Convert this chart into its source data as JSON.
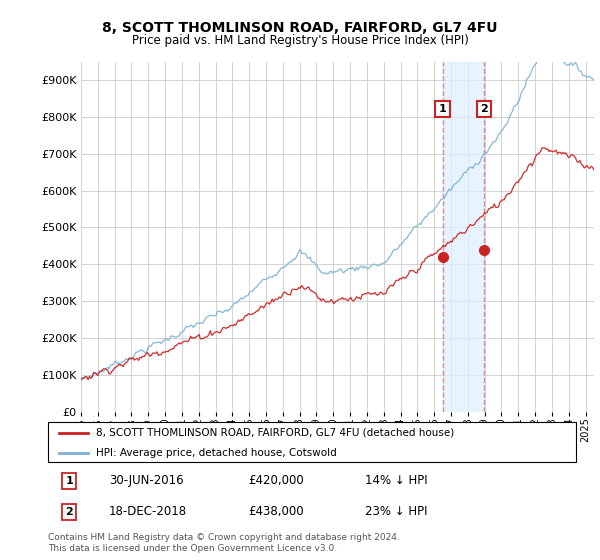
{
  "title": "8, SCOTT THOMLINSON ROAD, FAIRFORD, GL7 4FU",
  "subtitle": "Price paid vs. HM Land Registry's House Price Index (HPI)",
  "ytick_values": [
    0,
    100000,
    200000,
    300000,
    400000,
    500000,
    600000,
    700000,
    800000,
    900000
  ],
  "ylim": [
    0,
    950000
  ],
  "xlim_start": 1995.0,
  "xlim_end": 2025.5,
  "hpi_color": "#7ab0d4",
  "hpi_fill_color": "#ddeeff",
  "price_color": "#cc2222",
  "vline_color": "#e08080",
  "sale1_date": 2016.5,
  "sale1_price": 420000,
  "sale1_label": "1",
  "sale2_date": 2018.96,
  "sale2_price": 438000,
  "sale2_label": "2",
  "legend1_text": "8, SCOTT THOMLINSON ROAD, FAIRFORD, GL7 4FU (detached house)",
  "legend2_text": "HPI: Average price, detached house, Cotswold",
  "footnote": "Contains HM Land Registry data © Crown copyright and database right 2024.\nThis data is licensed under the Open Government Licence v3.0.",
  "background_color": "#ffffff",
  "grid_color": "#cccccc"
}
